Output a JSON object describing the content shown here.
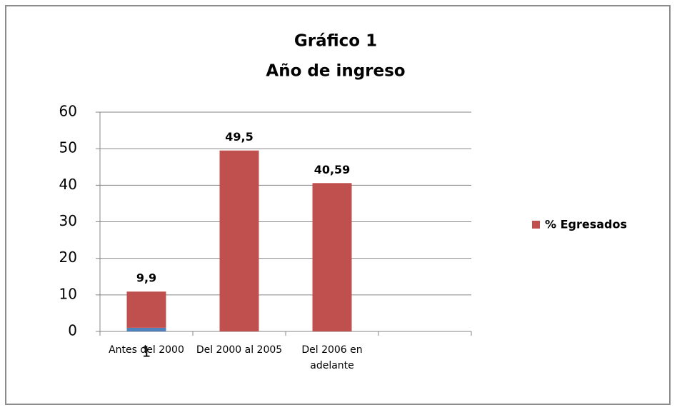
{
  "chart_data": {
    "type": "bar",
    "stacked": true,
    "title": "Gráfico 1",
    "subtitle": "Año de ingreso",
    "categories": [
      "Antes del 2000",
      "Del 2000 al 2005",
      "Del 2006 en adelante",
      null
    ],
    "series": [
      {
        "color": "#4f81bd",
        "values": [
          1,
          null,
          null,
          null
        ],
        "label_position": "below"
      },
      {
        "name": "% Egresados",
        "color": "#c0504d",
        "values": [
          9.9,
          49.5,
          40.59,
          null
        ],
        "value_labels": [
          "9,9",
          "49,5",
          "40,59",
          null
        ],
        "label_position": "above"
      }
    ],
    "ylim": [
      0,
      60
    ],
    "yticks": [
      0,
      10,
      20,
      30,
      40,
      50,
      60
    ],
    "grid": true,
    "legend": "right"
  }
}
